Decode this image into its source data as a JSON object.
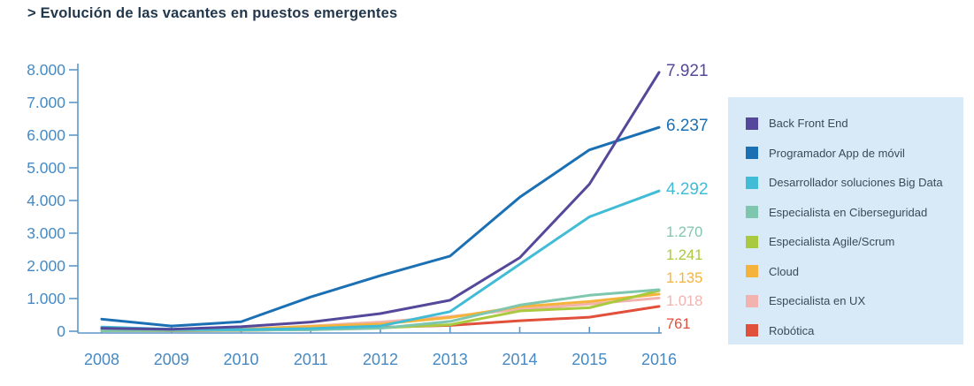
{
  "title": "> Evolución de las vacantes en puestos emergentes",
  "chart_data": {
    "type": "line",
    "x": [
      2008,
      2009,
      2010,
      2011,
      2012,
      2013,
      2014,
      2015,
      2016
    ],
    "x_tick_labels": [
      "2008",
      "2009",
      "2010",
      "2011",
      "2012",
      "2013",
      "2014",
      "2015",
      "2016"
    ],
    "y_tick_labels": [
      "0",
      "1.000",
      "2.000",
      "3.000",
      "4.000",
      "5.000",
      "6.000",
      "7.000",
      "8.000"
    ],
    "ylim": [
      0,
      8000
    ],
    "grid": false,
    "legend_position": "right",
    "axis_color": "#5e97c9",
    "tick_text_color": "#4789c2",
    "series": [
      {
        "name": "Back Front End",
        "color": "#54489b",
        "values": [
          90,
          60,
          140,
          280,
          540,
          950,
          2250,
          4500,
          7921
        ],
        "end_label": "7.921"
      },
      {
        "name": "Programador App de móvil",
        "color": "#1b70b4",
        "values": [
          370,
          160,
          290,
          1050,
          1700,
          2300,
          4100,
          5550,
          6237
        ],
        "end_label": "6.237"
      },
      {
        "name": "Desarrollador soluciones Big Data",
        "color": "#41bcd6",
        "values": [
          130,
          60,
          50,
          80,
          160,
          600,
          2050,
          3500,
          4292
        ],
        "end_label": "4.292"
      },
      {
        "name": "Especialista en Ciberseguridad",
        "color": "#7fc6ae",
        "values": [
          20,
          25,
          35,
          45,
          90,
          300,
          800,
          1100,
          1270
        ],
        "end_label": "1.270"
      },
      {
        "name": "Especialista Agile/Scrum",
        "color": "#a9c93e",
        "values": [
          15,
          20,
          30,
          50,
          100,
          200,
          620,
          720,
          1241
        ],
        "end_label": "1.241"
      },
      {
        "name": "Cloud",
        "color": "#f6b33c",
        "values": [
          30,
          40,
          60,
          150,
          220,
          420,
          750,
          910,
          1135
        ],
        "end_label": "1.135"
      },
      {
        "name": "Especialista en UX",
        "color": "#f2b3ae",
        "values": [
          25,
          35,
          60,
          160,
          280,
          450,
          670,
          830,
          1018
        ],
        "end_label": "1.018"
      },
      {
        "name": "Robótica",
        "color": "#e0503a",
        "values": [
          20,
          15,
          25,
          60,
          120,
          180,
          320,
          430,
          761
        ],
        "end_label": "761"
      }
    ]
  },
  "legend": {
    "background": "#d8eaf7"
  }
}
